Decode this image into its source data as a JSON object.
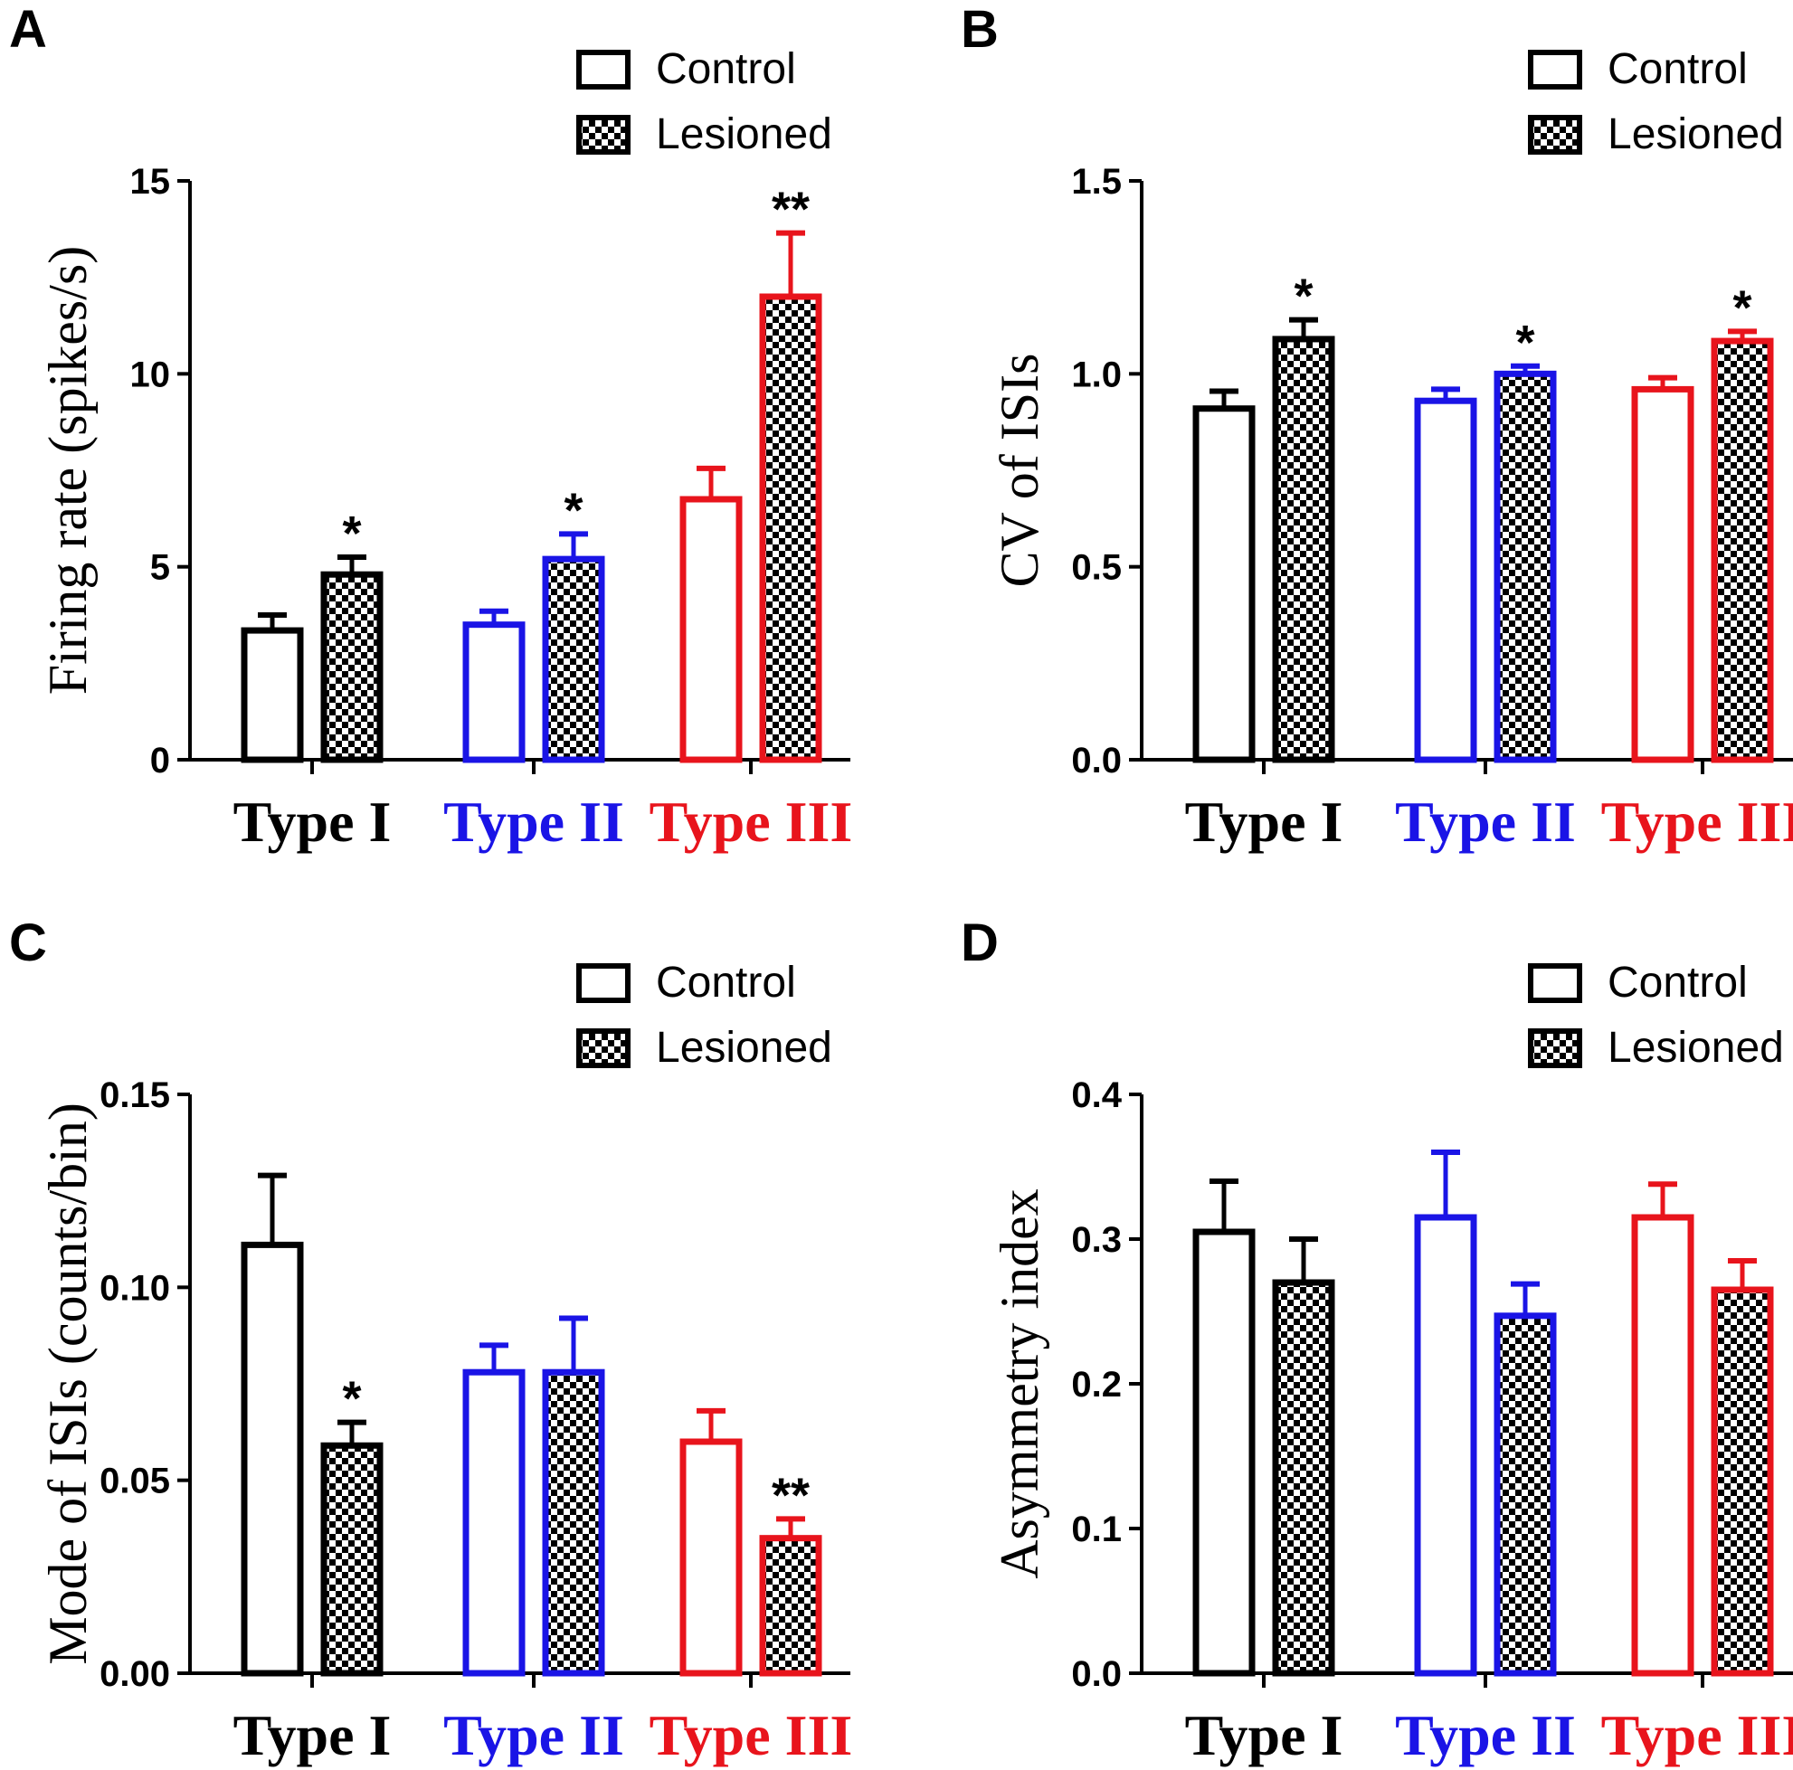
{
  "chart_data": [
    {
      "panel": "A",
      "type": "bar",
      "ylabel": "Firing rate (spikes/s)",
      "ylim": [
        0,
        15
      ],
      "yticks": [
        "0",
        "5",
        "10",
        "15"
      ],
      "yticks_values": [
        0,
        5,
        10,
        15
      ],
      "categories": [
        "Type I",
        "Type II",
        "Type III"
      ],
      "category_colors": [
        "#000000",
        "#1a14e6",
        "#e8141c"
      ],
      "legend": [
        "Control",
        "Lesioned"
      ],
      "legend_position": "top-right",
      "series": [
        {
          "name": "Control",
          "values": [
            3.35,
            3.5,
            6.75
          ],
          "errors": [
            0.4,
            0.35,
            0.8
          ],
          "stars": [
            "",
            "",
            ""
          ]
        },
        {
          "name": "Lesioned",
          "values": [
            4.8,
            5.2,
            12.0
          ],
          "errors": [
            0.45,
            0.65,
            1.65
          ],
          "stars": [
            "*",
            "*",
            "**"
          ]
        }
      ]
    },
    {
      "panel": "B",
      "type": "bar",
      "ylabel": "CV of ISIs",
      "ylim": [
        0,
        1.5
      ],
      "yticks": [
        "0.0",
        "0.5",
        "1.0",
        "1.5"
      ],
      "yticks_values": [
        0,
        0.5,
        1.0,
        1.5
      ],
      "categories": [
        "Type I",
        "Type II",
        "Type III"
      ],
      "category_colors": [
        "#000000",
        "#1a14e6",
        "#e8141c"
      ],
      "legend": [
        "Control",
        "Lesioned"
      ],
      "legend_position": "top-right",
      "series": [
        {
          "name": "Control",
          "values": [
            0.91,
            0.93,
            0.96
          ],
          "errors": [
            0.045,
            0.03,
            0.03
          ],
          "stars": [
            "",
            "",
            ""
          ]
        },
        {
          "name": "Lesioned",
          "values": [
            1.09,
            1.0,
            1.085
          ],
          "errors": [
            0.05,
            0.02,
            0.025
          ],
          "stars": [
            "*",
            "*",
            "*"
          ]
        }
      ]
    },
    {
      "panel": "C",
      "type": "bar",
      "ylabel": "Mode of ISIs (counts/bin)",
      "ylim": [
        0,
        0.15
      ],
      "yticks": [
        "0.00",
        "0.05",
        "0.10",
        "0.15"
      ],
      "yticks_values": [
        0,
        0.05,
        0.1,
        0.15
      ],
      "categories": [
        "Type I",
        "Type II",
        "Type III"
      ],
      "category_colors": [
        "#000000",
        "#1a14e6",
        "#e8141c"
      ],
      "legend": [
        "Control",
        "Lesioned"
      ],
      "legend_position": "top-right",
      "series": [
        {
          "name": "Control",
          "values": [
            0.111,
            0.078,
            0.06
          ],
          "errors": [
            0.018,
            0.007,
            0.008
          ],
          "stars": [
            "",
            "",
            ""
          ]
        },
        {
          "name": "Lesioned",
          "values": [
            0.059,
            0.078,
            0.035
          ],
          "errors": [
            0.006,
            0.014,
            0.005
          ],
          "stars": [
            "*",
            "",
            "**"
          ]
        }
      ]
    },
    {
      "panel": "D",
      "type": "bar",
      "ylabel": "Asymmetry index",
      "ylim": [
        0,
        0.4
      ],
      "yticks": [
        "0.0",
        "0.1",
        "0.2",
        "0.3",
        "0.4"
      ],
      "yticks_values": [
        0,
        0.1,
        0.2,
        0.3,
        0.4
      ],
      "categories": [
        "Type I",
        "Type II",
        "Type III"
      ],
      "category_colors": [
        "#000000",
        "#1a14e6",
        "#e8141c"
      ],
      "legend": [
        "Control",
        "Lesioned"
      ],
      "legend_position": "top-right",
      "series": [
        {
          "name": "Control",
          "values": [
            0.305,
            0.315,
            0.315
          ],
          "errors": [
            0.035,
            0.045,
            0.023
          ],
          "stars": [
            "",
            "",
            ""
          ]
        },
        {
          "name": "Lesioned",
          "values": [
            0.27,
            0.247,
            0.265
          ],
          "errors": [
            0.03,
            0.022,
            0.02
          ],
          "stars": [
            "",
            "",
            ""
          ]
        }
      ]
    }
  ]
}
